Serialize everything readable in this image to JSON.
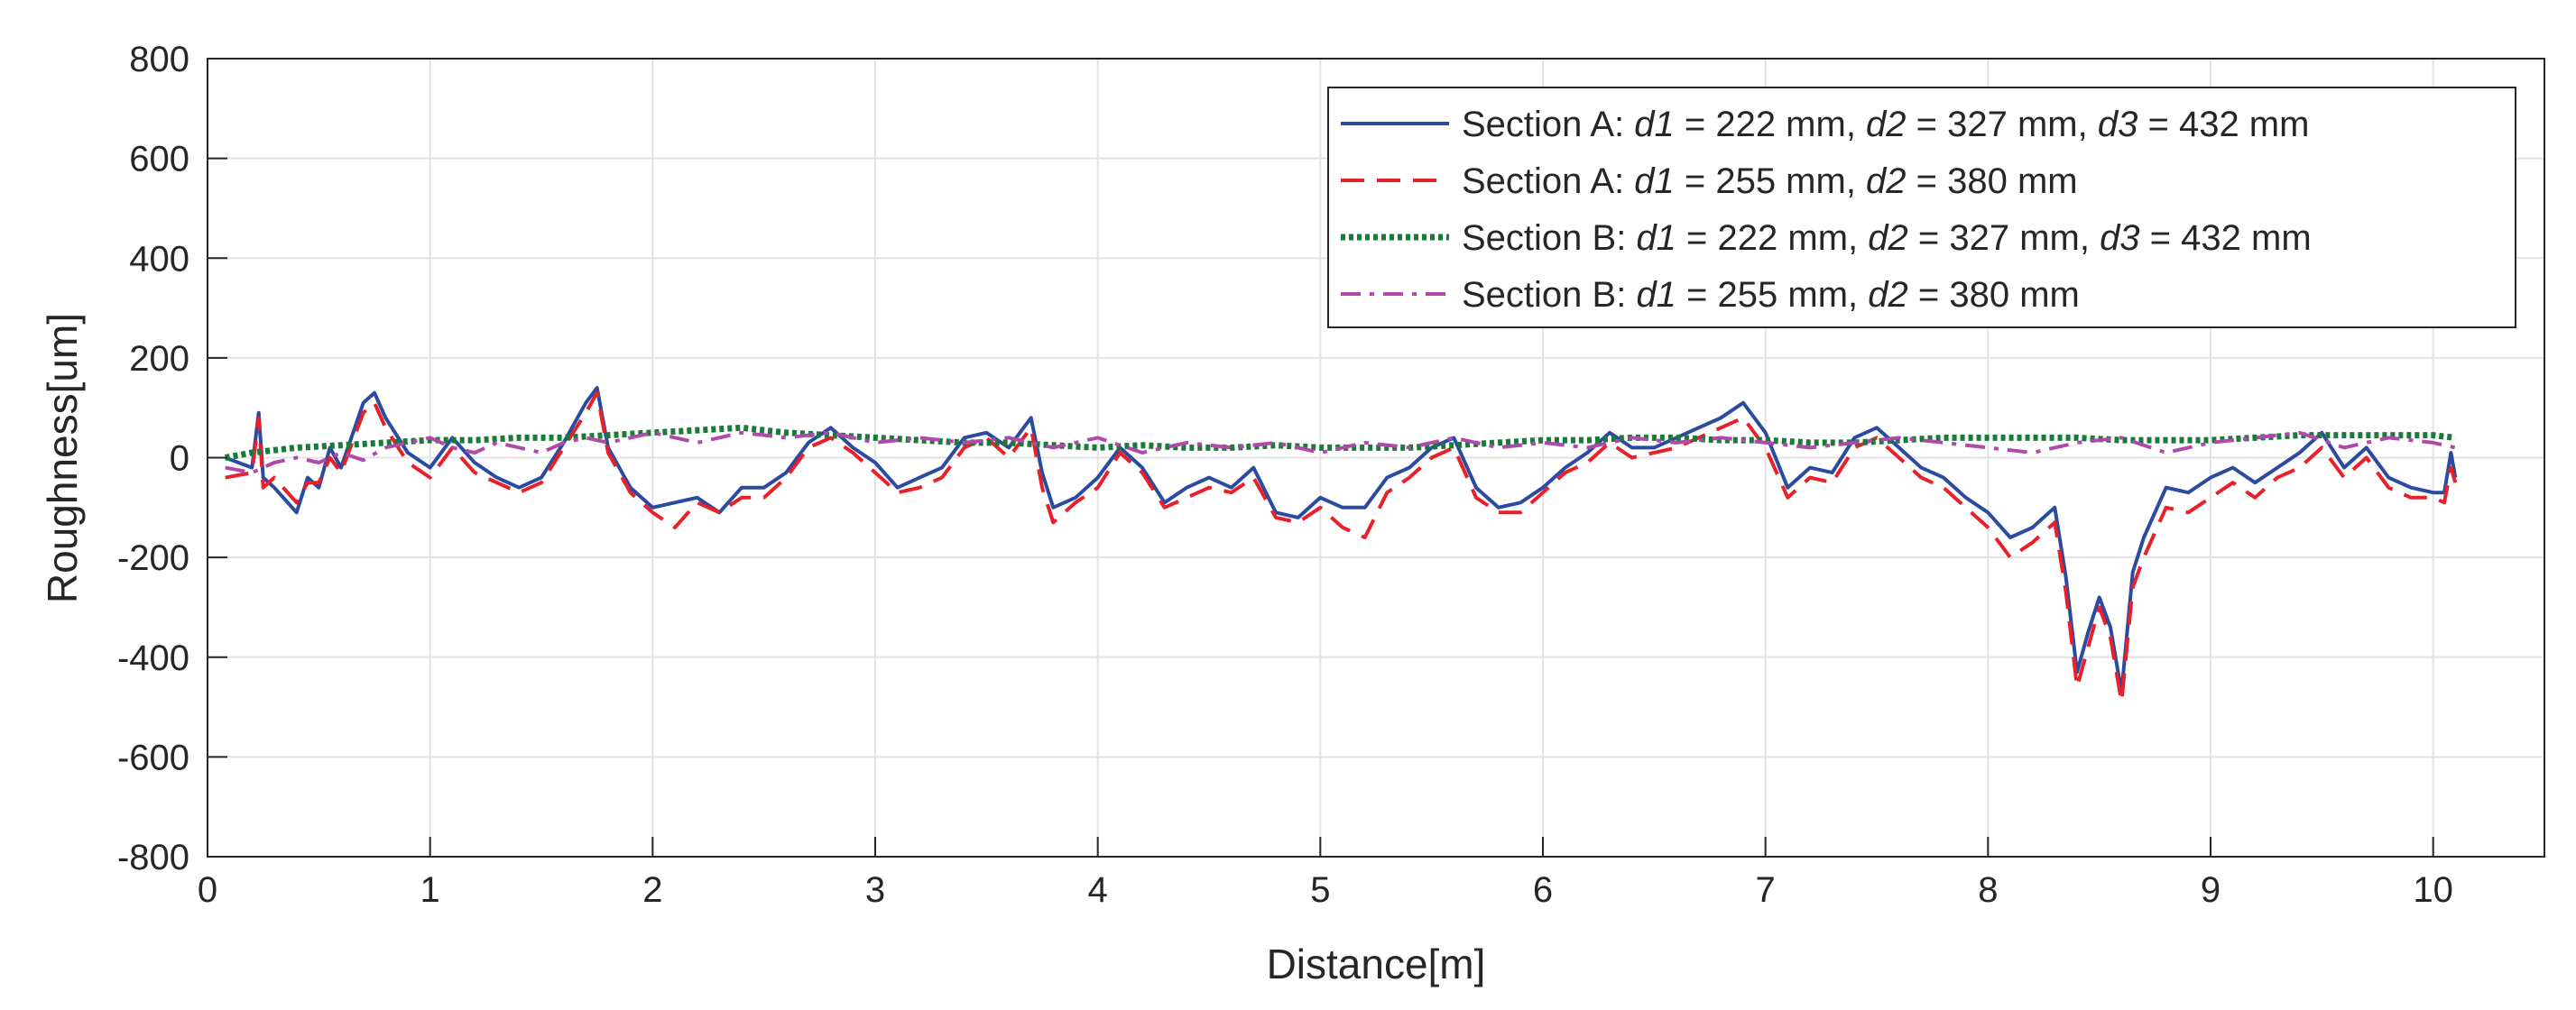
{
  "chart_data": {
    "type": "line",
    "title": "",
    "xlabel": "Distance[m]",
    "ylabel": "Roughness[um]",
    "xlim": [
      0,
      10.5
    ],
    "ylim": [
      -800,
      800
    ],
    "x_ticks": [
      0,
      1,
      2,
      3,
      4,
      5,
      6,
      7,
      8,
      9,
      10
    ],
    "y_ticks": [
      800,
      600,
      400,
      200,
      0,
      -200,
      -400,
      -600,
      -800
    ],
    "grid": true,
    "legend_position": "top-right",
    "series": [
      {
        "name": "Section A:  d1 = 222 mm,  d2 = 327 mm,  d3 = 432 mm",
        "legend": {
          "prefix": "Section A:  ",
          "parts": [
            [
              "d1",
              " = 222 mm,  "
            ],
            [
              "d2",
              " = 327 mm,  "
            ],
            [
              "d3",
              " = 432 mm"
            ]
          ]
        },
        "color": "#2b4ba0",
        "dash": "solid",
        "x": [
          0.08,
          0.2,
          0.23,
          0.25,
          0.3,
          0.4,
          0.45,
          0.5,
          0.55,
          0.6,
          0.7,
          0.75,
          0.8,
          0.9,
          1.0,
          1.1,
          1.2,
          1.3,
          1.4,
          1.5,
          1.6,
          1.7,
          1.75,
          1.8,
          1.9,
          2.0,
          2.1,
          2.2,
          2.3,
          2.4,
          2.5,
          2.6,
          2.7,
          2.8,
          2.9,
          3.0,
          3.1,
          3.2,
          3.3,
          3.4,
          3.5,
          3.6,
          3.7,
          3.75,
          3.8,
          3.9,
          4.0,
          4.1,
          4.2,
          4.3,
          4.4,
          4.5,
          4.6,
          4.7,
          4.8,
          4.9,
          5.0,
          5.1,
          5.2,
          5.3,
          5.4,
          5.5,
          5.6,
          5.7,
          5.8,
          5.9,
          6.0,
          6.1,
          6.2,
          6.3,
          6.4,
          6.5,
          6.6,
          6.7,
          6.8,
          6.9,
          7.0,
          7.1,
          7.2,
          7.3,
          7.4,
          7.5,
          7.6,
          7.7,
          7.8,
          7.9,
          8.0,
          8.1,
          8.2,
          8.3,
          8.35,
          8.4,
          8.45,
          8.5,
          8.55,
          8.6,
          8.65,
          8.7,
          8.8,
          8.9,
          9.0,
          9.1,
          9.2,
          9.3,
          9.4,
          9.5,
          9.6,
          9.7,
          9.8,
          9.9,
          10.0,
          10.05,
          10.08,
          10.1
        ],
        "y": [
          0,
          -20,
          90,
          -40,
          -60,
          -110,
          -40,
          -60,
          20,
          -20,
          110,
          130,
          80,
          10,
          -20,
          40,
          -10,
          -40,
          -60,
          -40,
          30,
          110,
          140,
          20,
          -60,
          -100,
          -90,
          -80,
          -110,
          -60,
          -60,
          -30,
          30,
          60,
          20,
          -10,
          -60,
          -40,
          -20,
          40,
          50,
          20,
          80,
          -30,
          -100,
          -80,
          -40,
          20,
          -20,
          -90,
          -60,
          -40,
          -60,
          -20,
          -110,
          -120,
          -80,
          -100,
          -100,
          -40,
          -20,
          20,
          40,
          -60,
          -100,
          -90,
          -60,
          -20,
          10,
          50,
          20,
          20,
          40,
          60,
          80,
          110,
          50,
          -60,
          -20,
          -30,
          40,
          60,
          20,
          -20,
          -40,
          -80,
          -110,
          -160,
          -140,
          -100,
          -240,
          -430,
          -350,
          -280,
          -340,
          -470,
          -230,
          -160,
          -60,
          -70,
          -40,
          -20,
          -50,
          -20,
          10,
          50,
          -20,
          20,
          -40,
          -60,
          -70,
          -70,
          10,
          -40
        ],
        "description": "Rough trace with deep dip to about -470 um near 8.6 m"
      },
      {
        "name": "Section A:  d1 = 255 mm,  d2 = 380 mm",
        "legend": {
          "prefix": "Section A:  ",
          "parts": [
            [
              "d1",
              " = 255 mm,  "
            ],
            [
              "d2",
              " = 380 mm"
            ]
          ]
        },
        "color": "#e8202a",
        "dash": "dashed",
        "x": [
          0.08,
          0.2,
          0.23,
          0.25,
          0.3,
          0.4,
          0.45,
          0.5,
          0.55,
          0.6,
          0.7,
          0.75,
          0.8,
          0.9,
          1.0,
          1.1,
          1.2,
          1.3,
          1.4,
          1.5,
          1.6,
          1.7,
          1.75,
          1.8,
          1.9,
          2.0,
          2.1,
          2.2,
          2.3,
          2.4,
          2.5,
          2.6,
          2.7,
          2.8,
          2.9,
          3.0,
          3.1,
          3.2,
          3.3,
          3.4,
          3.5,
          3.6,
          3.7,
          3.75,
          3.8,
          3.9,
          4.0,
          4.1,
          4.2,
          4.3,
          4.4,
          4.5,
          4.6,
          4.7,
          4.8,
          4.9,
          5.0,
          5.1,
          5.2,
          5.3,
          5.4,
          5.5,
          5.6,
          5.7,
          5.8,
          5.9,
          6.0,
          6.1,
          6.2,
          6.3,
          6.4,
          6.5,
          6.6,
          6.7,
          6.8,
          6.9,
          7.0,
          7.1,
          7.2,
          7.3,
          7.4,
          7.5,
          7.6,
          7.7,
          7.8,
          7.9,
          8.0,
          8.1,
          8.2,
          8.3,
          8.35,
          8.4,
          8.45,
          8.5,
          8.55,
          8.6,
          8.65,
          8.7,
          8.8,
          8.9,
          9.0,
          9.1,
          9.2,
          9.3,
          9.4,
          9.5,
          9.6,
          9.7,
          9.8,
          9.9,
          10.0,
          10.05,
          10.08,
          10.1
        ],
        "y": [
          -40,
          -30,
          80,
          -60,
          -40,
          -90,
          -50,
          -50,
          0,
          -30,
          90,
          110,
          60,
          -10,
          -40,
          20,
          -30,
          -50,
          -70,
          -50,
          20,
          90,
          130,
          10,
          -70,
          -110,
          -140,
          -90,
          -110,
          -80,
          -80,
          -40,
          20,
          40,
          10,
          -30,
          -70,
          -60,
          -40,
          20,
          40,
          0,
          60,
          -60,
          -130,
          -90,
          -60,
          10,
          -30,
          -100,
          -80,
          -60,
          -70,
          -40,
          -120,
          -130,
          -100,
          -140,
          -160,
          -70,
          -40,
          0,
          20,
          -80,
          -110,
          -110,
          -70,
          -30,
          -10,
          30,
          0,
          10,
          20,
          40,
          60,
          80,
          20,
          -80,
          -40,
          -50,
          20,
          40,
          0,
          -40,
          -60,
          -100,
          -140,
          -200,
          -170,
          -130,
          -270,
          -460,
          -380,
          -300,
          -360,
          -490,
          -260,
          -200,
          -100,
          -110,
          -80,
          -50,
          -80,
          -40,
          -20,
          20,
          -40,
          0,
          -60,
          -80,
          -80,
          -90,
          -20,
          -50
        ],
        "description": "Similar to Section A 222 mm trace, slightly lower, min about -490 um near 8.6 m"
      },
      {
        "name": "Section B:  d1 = 222 mm,  d2 = 327 mm,  d3 = 432 mm",
        "legend": {
          "prefix": "Section B:  ",
          "parts": [
            [
              "d1",
              " = 222 mm,  "
            ],
            [
              "d2",
              " = 327 mm,  "
            ],
            [
              "d3",
              " = 432 mm"
            ]
          ]
        },
        "color": "#1a7a3a",
        "dash": "dotted",
        "x": [
          0.08,
          0.2,
          0.4,
          0.6,
          0.8,
          1.0,
          1.2,
          1.4,
          1.6,
          1.8,
          2.0,
          2.2,
          2.4,
          2.6,
          2.8,
          3.0,
          3.2,
          3.4,
          3.6,
          3.8,
          4.0,
          4.2,
          4.4,
          4.6,
          4.8,
          5.0,
          5.2,
          5.4,
          5.6,
          5.8,
          6.0,
          6.2,
          6.4,
          6.6,
          6.8,
          7.0,
          7.2,
          7.4,
          7.6,
          7.8,
          8.0,
          8.2,
          8.4,
          8.6,
          8.8,
          9.0,
          9.2,
          9.4,
          9.6,
          9.8,
          10.0,
          10.1
        ],
        "y": [
          0,
          10,
          20,
          25,
          30,
          35,
          35,
          40,
          40,
          45,
          50,
          55,
          60,
          50,
          45,
          40,
          35,
          30,
          30,
          25,
          20,
          25,
          20,
          20,
          25,
          20,
          20,
          20,
          25,
          30,
          35,
          35,
          40,
          40,
          35,
          35,
          30,
          30,
          35,
          40,
          40,
          40,
          40,
          35,
          35,
          35,
          40,
          45,
          45,
          45,
          45,
          40
        ],
        "description": "Smooth, nearly flat trace between 0 and 60 um"
      },
      {
        "name": "Section B:  d1 = 255 mm,  d2 = 380 mm",
        "legend": {
          "prefix": "Section B:  ",
          "parts": [
            [
              "d1",
              " = 255 mm,  "
            ],
            [
              "d2",
              " = 380 mm"
            ]
          ]
        },
        "color": "#b04aaa",
        "dash": "dashdot",
        "x": [
          0.08,
          0.2,
          0.3,
          0.4,
          0.5,
          0.6,
          0.7,
          0.8,
          0.9,
          1.0,
          1.1,
          1.2,
          1.3,
          1.4,
          1.5,
          1.6,
          1.7,
          1.8,
          1.9,
          2.0,
          2.2,
          2.4,
          2.6,
          2.8,
          3.0,
          3.2,
          3.4,
          3.6,
          3.8,
          4.0,
          4.2,
          4.4,
          4.6,
          4.8,
          5.0,
          5.2,
          5.4,
          5.6,
          5.8,
          6.0,
          6.2,
          6.4,
          6.6,
          6.8,
          7.0,
          7.2,
          7.4,
          7.6,
          7.8,
          8.0,
          8.2,
          8.4,
          8.6,
          8.8,
          9.0,
          9.2,
          9.4,
          9.6,
          9.8,
          10.0,
          10.1
        ],
        "y": [
          -20,
          -30,
          -10,
          0,
          -10,
          10,
          -5,
          20,
          30,
          40,
          20,
          10,
          30,
          20,
          10,
          30,
          40,
          30,
          40,
          50,
          30,
          50,
          40,
          50,
          30,
          40,
          30,
          40,
          20,
          40,
          10,
          30,
          20,
          30,
          10,
          30,
          20,
          40,
          20,
          30,
          20,
          40,
          30,
          40,
          30,
          20,
          30,
          40,
          30,
          20,
          10,
          30,
          40,
          10,
          30,
          40,
          50,
          20,
          40,
          30,
          20
        ],
        "description": "Wavy trace oscillating between about -30 and 50 um"
      }
    ]
  }
}
